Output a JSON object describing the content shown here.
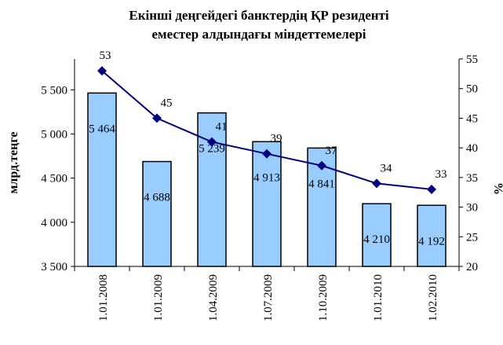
{
  "chart_data": {
    "type": "bar",
    "title": [
      "Екінші деңгейдегі банктердің ҚР резиденті",
      "еместер алдындағы міндеттемелері"
    ],
    "y_label": "млрд.теңге",
    "y2_label": "%",
    "categories": [
      "1.01.2008",
      "1.01.2009",
      "1.04.2009",
      "1.07.2009",
      "1.10.2009",
      "1.01.2010",
      "1.02.2010"
    ],
    "series": [
      {
        "type": "bar",
        "color": "#99ccff",
        "values": [
          5464,
          4688,
          5239,
          4913,
          4841,
          4210,
          4192
        ],
        "value_labels": [
          "5 464",
          "4 688",
          "5 239",
          "4 913",
          "4 841",
          "4 210",
          "4 192"
        ]
      },
      {
        "type": "line",
        "axis": "y2",
        "color": "#000080",
        "values": [
          53,
          45,
          41,
          39,
          37,
          34,
          33
        ]
      }
    ],
    "ylim": [
      3500,
      5850
    ],
    "yticks": [
      {
        "value": 3500,
        "label": "3 500"
      },
      {
        "value": 4000,
        "label": "4 000"
      },
      {
        "value": 4500,
        "label": "4 500"
      },
      {
        "value": 5000,
        "label": "5 000"
      },
      {
        "value": 5500,
        "label": "5 500"
      }
    ],
    "y2lim": [
      20,
      55
    ],
    "y2ticks": [
      20,
      25,
      30,
      35,
      40,
      45,
      50,
      55
    ]
  }
}
